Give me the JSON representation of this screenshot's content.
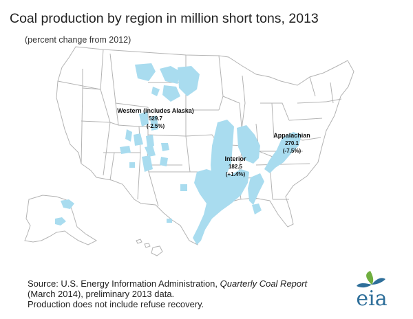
{
  "title": "Coal production by region in million short tons, 2013",
  "subtitle": "(percent change from 2012)",
  "regions": [
    {
      "name": "Western (includes Alaska)",
      "value": "529.7",
      "change": "(-2.5%)"
    },
    {
      "name": "Interior",
      "value": "182.5",
      "change": "(+1.4%)"
    },
    {
      "name": "Appalachian",
      "value": "270.1",
      "change": "(-7.5%)"
    }
  ],
  "source": {
    "prefix": "Source: U.S. Energy Information Administration,",
    "publication": "Quarterly Coal Report",
    "line2": "(March 2014), preliminary 2013 data.",
    "line3": "Production does not include refuse recovery."
  },
  "logo": {
    "text": "eia"
  },
  "colors": {
    "coal_area": "#a9dcef",
    "state_border": "#b3b3b3",
    "logo_blue": "#2f6f9a",
    "logo_green": "#6fae3f"
  }
}
